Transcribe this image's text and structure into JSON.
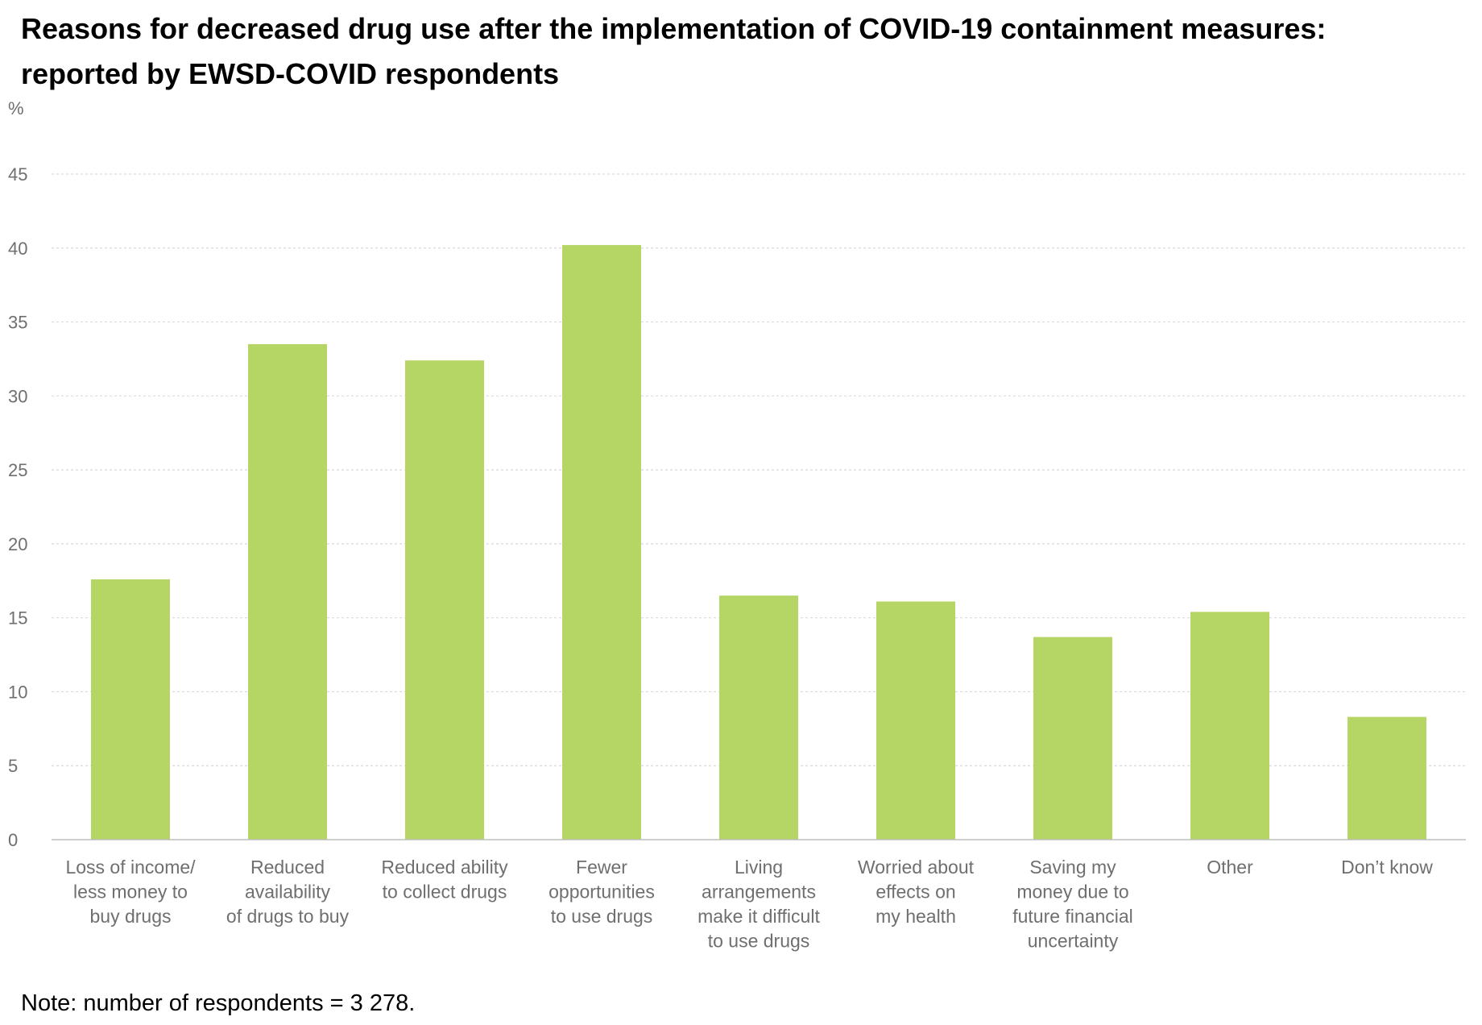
{
  "title": {
    "line1": "Reasons for decreased drug use after the implementation of COVID-19 containment measures:",
    "line2": "reported by EWSD-COVID respondents"
  },
  "note": "Note: number of respondents = 3 278.",
  "colors": {
    "bar": "#b5d564",
    "grid": "#d9d9d9",
    "axis_text": "#6f6f6f",
    "baseline": "#bfbfbf"
  },
  "chart_data": {
    "type": "bar",
    "ylabel": "%",
    "ylim": [
      0,
      45
    ],
    "yticks": [
      0,
      5,
      10,
      15,
      20,
      25,
      30,
      35,
      40,
      45
    ],
    "grid": true,
    "categories": [
      [
        "Loss of income/",
        "less money to",
        "buy drugs"
      ],
      [
        "Reduced",
        "availability",
        "of drugs to buy"
      ],
      [
        "Reduced ability",
        "to collect drugs"
      ],
      [
        "Fewer",
        "opportunities",
        "to use drugs"
      ],
      [
        "Living",
        "arrangements",
        "make it difficult",
        "to use drugs"
      ],
      [
        "Worried about",
        "effects on",
        "my health"
      ],
      [
        "Saving my",
        "money due to",
        "future financial",
        "uncertainty"
      ],
      [
        "Other"
      ],
      [
        "Don’t know"
      ]
    ],
    "values": [
      17.6,
      33.5,
      32.4,
      40.2,
      16.5,
      16.1,
      13.7,
      15.4,
      8.3
    ]
  }
}
